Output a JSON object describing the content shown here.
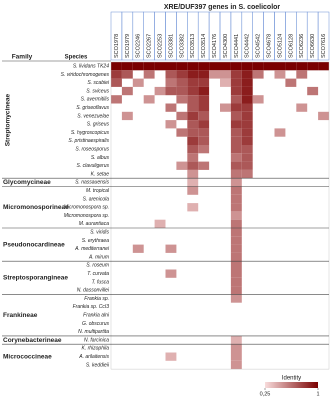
{
  "chart_data": {
    "type": "heatmap",
    "title": "XRE/DUF397 genes in S. coelicolor",
    "family_header": "Family",
    "species_header": "Species",
    "columns": [
      "SCO1978",
      "SCO1979",
      "SCO2246",
      "SCO2267",
      "SCO2253",
      "SCO3381",
      "SCO3382",
      "SCO3513",
      "SCO3514",
      "SCO4176",
      "SCO4300",
      "SCO4441",
      "SCO4442",
      "SCO4542",
      "SCO4678",
      "SCO5124",
      "SCO6128",
      "SCO6236",
      "SCO6630",
      "SCO7616"
    ],
    "column_label_colors": [
      "#c0208c",
      "#2040c0",
      "#c0208c",
      "#2040c0",
      "#c0208c",
      "#2040c0",
      "#c0208c",
      "#2040c0",
      "#c0208c",
      "#2040c0",
      "#c0208c",
      "#2040c0",
      "#c0208c",
      "#2040c0",
      "#c0208c",
      "#2040c0",
      "#c0208c",
      "#2040c0",
      "#c0208c",
      "#2040c0"
    ],
    "rows": [
      "S. lividans TK24",
      "S. viridochromogenes",
      "S. scabiei",
      "S. sviceus",
      "S. avermitilis",
      "S. griseoflavus",
      "S. venezuelae",
      "S. griseus",
      "S. hygroscopicus",
      "S. pristinaespiralis",
      "S. roseosporus",
      "S. albus",
      "S. clavuligerus",
      "K. setae",
      "S. nassauensis",
      "M. tropical",
      "S. arenicola",
      "Micromonospora sp.",
      "Micromonospora sp.",
      "M. aurantiaca",
      "S. viridis",
      "S. erythraea",
      "A. mediterranei",
      "A. mirum",
      "S. roseum",
      "T. curvata",
      "T. fusca",
      "N. dassonvillei",
      "Frankia sp.",
      "Frankia sp. CcI3",
      "Frankia alni",
      "G. obscurus",
      "N. multipartita",
      "N. farcinica",
      "K. rhizophila",
      "A. arilaitensis",
      "S. keddieii"
    ],
    "families": [
      {
        "name": "Streptomycineae",
        "rows": [
          0,
          13
        ]
      },
      {
        "name": "Glycomycineae",
        "rows": [
          14,
          14
        ]
      },
      {
        "name": "Micromonosporineae",
        "rows": [
          15,
          19
        ]
      },
      {
        "name": "Pseudonocardineae",
        "rows": [
          20,
          23
        ]
      },
      {
        "name": "Streptosporangineae",
        "rows": [
          24,
          27
        ]
      },
      {
        "name": "Frankineae",
        "rows": [
          28,
          32
        ]
      },
      {
        "name": "Corynebacterineae",
        "rows": [
          33,
          33
        ]
      },
      {
        "name": "Micrococcineae",
        "rows": [
          34,
          36
        ]
      }
    ],
    "values": [
      [
        1,
        1,
        1,
        1,
        1,
        1,
        1,
        1,
        1,
        1,
        1,
        1,
        1,
        1,
        1,
        1,
        1,
        1,
        1,
        1
      ],
      [
        0.8,
        0.7,
        null,
        0.6,
        null,
        0.7,
        0.8,
        0.9,
        0.9,
        0.5,
        0.5,
        0.8,
        0.9,
        0.6,
        null,
        0.5,
        null,
        0.6,
        null,
        null
      ],
      [
        0.7,
        null,
        0.5,
        null,
        null,
        0.6,
        0.7,
        0.8,
        0.8,
        null,
        0.4,
        0.8,
        0.9,
        null,
        null,
        null,
        0.6,
        null,
        null,
        null
      ],
      [
        null,
        0.6,
        null,
        null,
        0.5,
        0.7,
        0.7,
        0.8,
        0.9,
        null,
        null,
        0.8,
        0.9,
        null,
        null,
        null,
        null,
        null,
        0.6,
        null
      ],
      [
        0.6,
        null,
        null,
        0.5,
        null,
        null,
        0.6,
        0.7,
        0.8,
        null,
        null,
        0.7,
        0.9,
        0.5,
        null,
        null,
        null,
        null,
        null,
        null
      ],
      [
        null,
        null,
        null,
        null,
        null,
        0.6,
        null,
        0.7,
        0.8,
        null,
        0.5,
        0.8,
        0.8,
        null,
        null,
        null,
        null,
        0.5,
        null,
        null
      ],
      [
        null,
        0.5,
        null,
        null,
        null,
        null,
        0.6,
        0.8,
        0.7,
        null,
        null,
        0.7,
        0.8,
        null,
        null,
        null,
        null,
        null,
        null,
        0.5
      ],
      [
        null,
        null,
        null,
        null,
        null,
        0.5,
        null,
        0.7,
        0.8,
        null,
        null,
        0.8,
        0.8,
        null,
        null,
        null,
        null,
        null,
        null,
        null
      ],
      [
        null,
        null,
        null,
        null,
        null,
        null,
        0.6,
        0.7,
        0.7,
        null,
        null,
        0.7,
        0.8,
        null,
        null,
        0.5,
        null,
        null,
        null,
        null
      ],
      [
        null,
        null,
        null,
        null,
        null,
        null,
        null,
        0.8,
        0.7,
        null,
        null,
        0.7,
        0.8,
        null,
        null,
        null,
        null,
        null,
        null,
        null
      ],
      [
        null,
        null,
        null,
        null,
        null,
        null,
        null,
        0.7,
        0.6,
        null,
        null,
        0.7,
        0.7,
        null,
        null,
        null,
        null,
        null,
        null,
        null
      ],
      [
        null,
        null,
        null,
        null,
        null,
        null,
        null,
        0.6,
        null,
        null,
        null,
        0.6,
        0.7,
        null,
        null,
        null,
        null,
        null,
        null,
        null
      ],
      [
        null,
        null,
        null,
        null,
        null,
        null,
        0.5,
        0.7,
        0.6,
        null,
        null,
        0.7,
        0.7,
        null,
        null,
        null,
        null,
        null,
        null,
        null
      ],
      [
        null,
        null,
        null,
        null,
        null,
        null,
        null,
        0.5,
        null,
        null,
        null,
        0.6,
        0.6,
        null,
        null,
        null,
        null,
        null,
        null,
        null
      ],
      [
        null,
        null,
        null,
        null,
        null,
        null,
        null,
        0.4,
        null,
        null,
        null,
        0.5,
        null,
        null,
        null,
        null,
        null,
        null,
        null,
        null
      ],
      [
        null,
        null,
        null,
        null,
        null,
        null,
        null,
        0.5,
        null,
        null,
        null,
        0.6,
        null,
        null,
        null,
        null,
        null,
        null,
        null,
        null
      ],
      [
        null,
        null,
        null,
        null,
        null,
        null,
        null,
        null,
        null,
        null,
        null,
        0.6,
        null,
        null,
        null,
        null,
        null,
        null,
        null,
        null
      ],
      [
        null,
        null,
        null,
        null,
        null,
        null,
        null,
        0.4,
        null,
        null,
        null,
        0.6,
        null,
        null,
        null,
        null,
        null,
        null,
        null,
        null
      ],
      [
        null,
        null,
        null,
        null,
        null,
        null,
        null,
        null,
        null,
        null,
        null,
        0.5,
        null,
        null,
        null,
        null,
        null,
        null,
        null,
        null
      ],
      [
        null,
        null,
        null,
        null,
        0.4,
        null,
        null,
        null,
        null,
        null,
        null,
        0.6,
        null,
        null,
        null,
        null,
        null,
        null,
        null,
        null
      ],
      [
        null,
        null,
        null,
        null,
        null,
        null,
        null,
        null,
        null,
        null,
        null,
        0.6,
        null,
        null,
        null,
        null,
        null,
        null,
        null,
        null
      ],
      [
        null,
        null,
        null,
        null,
        null,
        null,
        null,
        null,
        null,
        null,
        null,
        0.6,
        null,
        null,
        null,
        null,
        null,
        null,
        null,
        null
      ],
      [
        null,
        null,
        0.5,
        null,
        null,
        0.5,
        null,
        null,
        null,
        null,
        null,
        0.6,
        null,
        null,
        null,
        null,
        null,
        null,
        null,
        null
      ],
      [
        null,
        null,
        null,
        null,
        null,
        null,
        null,
        null,
        null,
        null,
        null,
        0.6,
        null,
        null,
        null,
        null,
        null,
        null,
        null,
        null
      ],
      [
        null,
        null,
        null,
        null,
        null,
        null,
        null,
        null,
        null,
        null,
        null,
        0.6,
        null,
        null,
        null,
        null,
        null,
        null,
        null,
        null
      ],
      [
        null,
        null,
        null,
        null,
        null,
        0.5,
        null,
        null,
        null,
        null,
        null,
        0.6,
        null,
        null,
        null,
        null,
        null,
        null,
        null,
        null
      ],
      [
        null,
        null,
        null,
        null,
        null,
        null,
        null,
        null,
        null,
        null,
        null,
        0.6,
        null,
        null,
        null,
        null,
        null,
        null,
        null,
        null
      ],
      [
        null,
        null,
        null,
        null,
        null,
        null,
        null,
        null,
        null,
        null,
        null,
        0.6,
        null,
        null,
        null,
        null,
        null,
        null,
        null,
        null
      ],
      [
        null,
        null,
        null,
        null,
        null,
        null,
        null,
        null,
        null,
        null,
        null,
        0.5,
        null,
        null,
        null,
        null,
        null,
        null,
        null,
        null
      ],
      [
        null,
        null,
        null,
        null,
        null,
        null,
        null,
        null,
        null,
        null,
        null,
        null,
        null,
        null,
        null,
        null,
        null,
        null,
        null,
        null
      ],
      [
        null,
        null,
        null,
        null,
        null,
        null,
        null,
        null,
        null,
        null,
        null,
        null,
        null,
        null,
        null,
        null,
        null,
        null,
        null,
        null
      ],
      [
        null,
        null,
        null,
        null,
        null,
        null,
        null,
        null,
        null,
        null,
        null,
        null,
        null,
        null,
        null,
        null,
        null,
        null,
        null,
        null
      ],
      [
        null,
        null,
        null,
        null,
        null,
        null,
        null,
        null,
        null,
        null,
        null,
        null,
        null,
        null,
        null,
        null,
        null,
        null,
        null,
        null
      ],
      [
        null,
        null,
        null,
        null,
        null,
        null,
        null,
        null,
        null,
        null,
        null,
        0.4,
        null,
        null,
        null,
        null,
        null,
        null,
        null,
        null
      ],
      [
        null,
        null,
        null,
        null,
        null,
        null,
        null,
        null,
        null,
        null,
        null,
        0.5,
        null,
        null,
        null,
        null,
        null,
        null,
        null,
        null
      ],
      [
        null,
        null,
        null,
        null,
        null,
        0.4,
        null,
        null,
        null,
        null,
        null,
        0.5,
        null,
        null,
        null,
        null,
        null,
        null,
        null,
        null
      ],
      [
        null,
        null,
        null,
        null,
        null,
        null,
        null,
        null,
        null,
        null,
        null,
        0.5,
        null,
        null,
        null,
        null,
        null,
        null,
        null,
        null
      ]
    ],
    "colorscale": [
      "#f8dcdc",
      "#7a0000"
    ],
    "legend_title": "Identity",
    "clim": [
      0.25,
      1
    ],
    "cticks": [
      {
        "value": 0.25,
        "label": "0,25"
      },
      1
    ]
  }
}
